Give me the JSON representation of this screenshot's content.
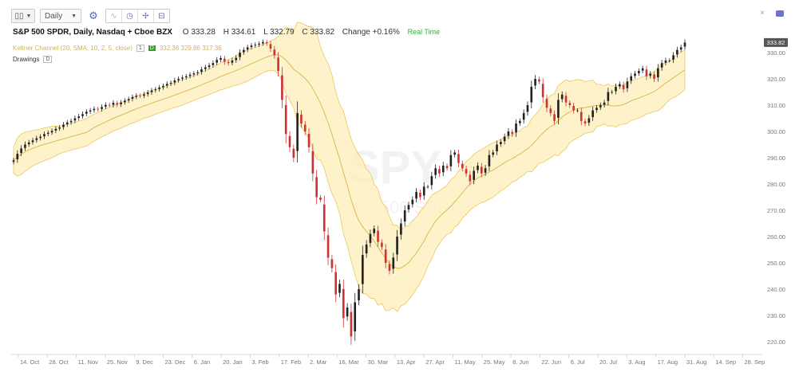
{
  "toolbar": {
    "chart_type_icon": "candlestick-icon",
    "interval": "Daily",
    "icons": [
      "gear-icon",
      "compare-icon",
      "clock-icon",
      "drawing-icon",
      "event-icon"
    ]
  },
  "top_right": {
    "close_symbol": "×",
    "icon": "camera-icon"
  },
  "info": {
    "symbol": "S&P 500 SPDR, Daily, Nasdaq + Cboe BZX",
    "open": "O 333.28",
    "high": "H 334.61",
    "low": "L 332.79",
    "close": "C 333.82",
    "change": "Change +0.16%",
    "realtime": "Real Time"
  },
  "indicator": {
    "name": "Keltner Channel (20, SMA, 10, 2, 5, close)",
    "settings_box": "1",
    "badge": "D",
    "values": "332.36 329.86 317.36"
  },
  "drawings": {
    "label": "Drawings",
    "box": "D"
  },
  "watermark": {
    "symbol": "SPY",
    "name": "S&P 500 SPDR"
  },
  "colors": {
    "up": "#222222",
    "down": "#cc3333",
    "band_fill": "#fdeeb8",
    "band_line": "#e8c860",
    "mid_line": "#d9b44a"
  },
  "chart_data": {
    "type": "candlestick",
    "title": "S&P 500 SPDR, Daily, Nasdaq + Cboe BZX",
    "ylim": [
      214,
      340
    ],
    "y_ticks": [
      220,
      230,
      240,
      250,
      260,
      270,
      280,
      290,
      300,
      310,
      320,
      330
    ],
    "last_price": "333.82",
    "x_ticks": [
      "14. Oct",
      "28. Oct",
      "11. Nov",
      "25. Nov",
      "9. Dec",
      "23. Dec",
      "6. Jan",
      "20. Jan",
      "3. Feb",
      "17. Feb",
      "2. Mar",
      "16. Mar",
      "30. Mar",
      "13. Apr",
      "27. Apr",
      "11. May",
      "25. May",
      "8. Jun",
      "22. Jun",
      "6. Jul",
      "20. Jul",
      "3. Aug",
      "17. Aug",
      "31. Aug",
      "14. Sep",
      "28. Sep"
    ],
    "closes": [
      289.0,
      291.5,
      293.5,
      295.0,
      295.8,
      296.6,
      297.4,
      298.0,
      299.0,
      299.5,
      300.2,
      301.0,
      301.5,
      302.6,
      303.4,
      304.0,
      305.0,
      305.7,
      306.6,
      307.5,
      308.0,
      308.6,
      308.4,
      309.3,
      310.1,
      310.0,
      310.9,
      310.2,
      311.0,
      311.7,
      312.3,
      313.1,
      313.6,
      313.5,
      314.1,
      314.8,
      315.6,
      316.0,
      316.7,
      317.3,
      318.1,
      318.5,
      319.4,
      320.0,
      320.5,
      321.0,
      321.6,
      322.1,
      322.5,
      323.6,
      324.4,
      325.1,
      326.0,
      327.2,
      327.9,
      326.5,
      326.0,
      327.0,
      328.0,
      330.0,
      331.0,
      332.0,
      332.7,
      333.0,
      333.4,
      334.0,
      333.5,
      331.5,
      329.0,
      323.0,
      312.0,
      299.0,
      294.0,
      290.0,
      307.0,
      303.0,
      300.0,
      294.0,
      284.0,
      275.0,
      274.0,
      262.0,
      252.0,
      248.0,
      238.0,
      242.0,
      229.0,
      233.0,
      222.0,
      235.0,
      240.0,
      253.0,
      257.0,
      261.0,
      263.0,
      258.0,
      256.0,
      250.0,
      247.0,
      252.0,
      260.0,
      265.0,
      270.0,
      272.0,
      274.0,
      277.0,
      275.0,
      279.0,
      279.0,
      283.0,
      286.0,
      284.0,
      287.0,
      286.0,
      291.0,
      292.0,
      288.0,
      286.0,
      284.0,
      281.0,
      285.0,
      287.0,
      284.0,
      286.0,
      291.0,
      292.0,
      295.0,
      296.0,
      298.0,
      300.0,
      299.0,
      303.0,
      304.0,
      307.0,
      310.0,
      317.0,
      320.0,
      319.0,
      313.0,
      309.0,
      307.0,
      304.0,
      312.0,
      314.0,
      311.0,
      310.0,
      308.0,
      308.0,
      304.0,
      303.0,
      305.0,
      308.0,
      309.0,
      310.0,
      311.0,
      315.0,
      315.0,
      317.0,
      318.0,
      316.0,
      319.0,
      321.0,
      322.0,
      323.0,
      324.0,
      321.0,
      322.0,
      320.0,
      324.0,
      326.0,
      327.0,
      327.0,
      329.0,
      331.0,
      332.0,
      333.82
    ]
  }
}
